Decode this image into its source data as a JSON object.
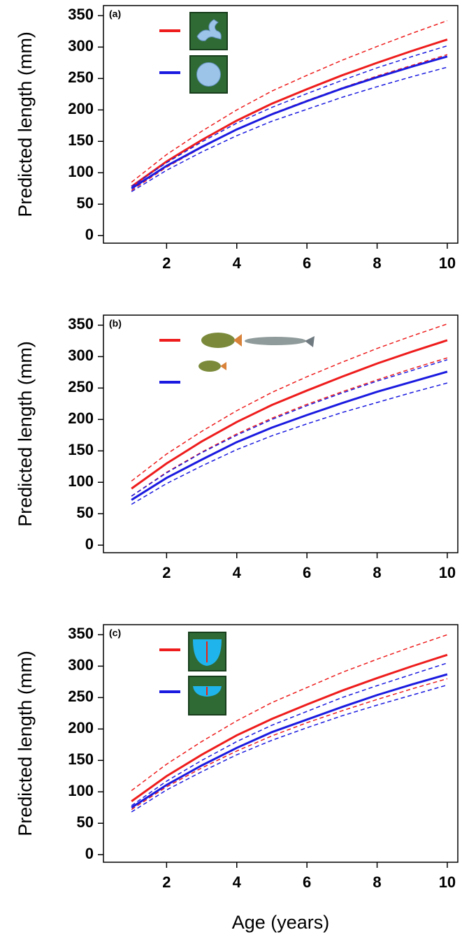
{
  "chart_data": [
    {
      "type": "line",
      "panel_label": "(a)",
      "ylabel": "Predicted length (mm)",
      "x": [
        1,
        2,
        3,
        4,
        5,
        6,
        7,
        8,
        9,
        10
      ],
      "xlim": [
        0.2,
        10.3
      ],
      "xticks": [
        2,
        4,
        6,
        8,
        10
      ],
      "ylim": [
        -12,
        366
      ],
      "yticks": [
        0,
        50,
        100,
        150,
        200,
        250,
        300,
        350
      ],
      "series": [
        {
          "color": "#ee1c1c",
          "dashed": false,
          "values": [
            78,
            118,
            152,
            183,
            210,
            233,
            255,
            275,
            294,
            312
          ]
        },
        {
          "color": "#ee1c1c",
          "dashed": true,
          "values": [
            85,
            129,
            166,
            200,
            230,
            255,
            279,
            301,
            322,
            342
          ]
        },
        {
          "color": "#ee1c1c",
          "dashed": true,
          "values": [
            72,
            109,
            140,
            169,
            194,
            215,
            235,
            254,
            271,
            288
          ]
        },
        {
          "color": "#1a1ae0",
          "dashed": false,
          "values": [
            75,
            111,
            141,
            169,
            193,
            214,
            234,
            252,
            269,
            285
          ]
        },
        {
          "color": "#1a1ae0",
          "dashed": true,
          "values": [
            78,
            116,
            149,
            179,
            204,
            226,
            247,
            267,
            285,
            302
          ]
        },
        {
          "color": "#1a1ae0",
          "dashed": true,
          "values": [
            70,
            104,
            133,
            159,
            182,
            201,
            220,
            237,
            253,
            268
          ]
        }
      ]
    },
    {
      "type": "line",
      "panel_label": "(b)",
      "ylabel": "Predicted length (mm)",
      "x": [
        1,
        2,
        3,
        4,
        5,
        6,
        7,
        8,
        9,
        10
      ],
      "xlim": [
        0.2,
        10.3
      ],
      "xticks": [
        2,
        4,
        6,
        8,
        10
      ],
      "ylim": [
        -12,
        366
      ],
      "yticks": [
        0,
        50,
        100,
        150,
        200,
        250,
        300,
        350
      ],
      "series": [
        {
          "color": "#ee1c1c",
          "dashed": false,
          "values": [
            90,
            130,
            165,
            196,
            223,
            246,
            268,
            289,
            308,
            326
          ]
        },
        {
          "color": "#ee1c1c",
          "dashed": true,
          "values": [
            102,
            145,
            181,
            214,
            243,
            268,
            291,
            313,
            333,
            352
          ]
        },
        {
          "color": "#ee1c1c",
          "dashed": true,
          "values": [
            78,
            116,
            148,
            177,
            202,
            224,
            244,
            263,
            281,
            298
          ]
        },
        {
          "color": "#1a1ae0",
          "dashed": false,
          "values": [
            72,
            107,
            136,
            164,
            187,
            207,
            226,
            244,
            260,
            276
          ]
        },
        {
          "color": "#1a1ae0",
          "dashed": true,
          "values": [
            78,
            115,
            147,
            175,
            200,
            222,
            242,
            261,
            278,
            295
          ]
        },
        {
          "color": "#1a1ae0",
          "dashed": true,
          "values": [
            65,
            98,
            126,
            152,
            174,
            193,
            211,
            227,
            243,
            258
          ]
        }
      ]
    },
    {
      "type": "line",
      "panel_label": "(c)",
      "ylabel": "Predicted length (mm)",
      "xlabel": "Age (years)",
      "x": [
        1,
        2,
        3,
        4,
        5,
        6,
        7,
        8,
        9,
        10
      ],
      "xlim": [
        0.2,
        10.3
      ],
      "xticks": [
        2,
        4,
        6,
        8,
        10
      ],
      "ylim": [
        -12,
        366
      ],
      "yticks": [
        0,
        50,
        100,
        150,
        200,
        250,
        300,
        350
      ],
      "series": [
        {
          "color": "#ee1c1c",
          "dashed": false,
          "values": [
            85,
            125,
            159,
            190,
            216,
            239,
            261,
            281,
            300,
            318
          ]
        },
        {
          "color": "#ee1c1c",
          "dashed": true,
          "values": [
            102,
            144,
            180,
            213,
            242,
            266,
            290,
            311,
            331,
            350
          ]
        },
        {
          "color": "#ee1c1c",
          "dashed": true,
          "values": [
            72,
            108,
            138,
            165,
            189,
            210,
            229,
            247,
            264,
            280
          ]
        },
        {
          "color": "#1a1ae0",
          "dashed": false,
          "values": [
            75,
            111,
            142,
            170,
            195,
            215,
            235,
            254,
            271,
            287
          ]
        },
        {
          "color": "#1a1ae0",
          "dashed": true,
          "values": [
            78,
            117,
            150,
            180,
            206,
            228,
            250,
            269,
            287,
            305
          ]
        },
        {
          "color": "#1a1ae0",
          "dashed": true,
          "values": [
            68,
            103,
            132,
            159,
            182,
            202,
            221,
            238,
            254,
            270
          ]
        }
      ]
    }
  ]
}
